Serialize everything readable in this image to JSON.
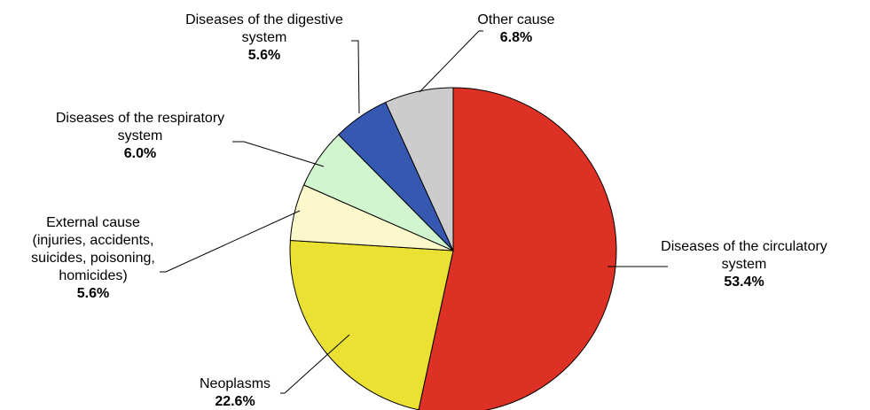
{
  "chart_data": {
    "type": "pie",
    "start": "12 o'clock",
    "direction": "clockwise",
    "slices": [
      {
        "lines": [
          "Diseases of the circulatory",
          "system"
        ],
        "pct_text": "53.4%",
        "value": 53.4,
        "color": "#dd3125"
      },
      {
        "lines": [
          "Neoplasms"
        ],
        "pct_text": "22.6%",
        "value": 22.6,
        "color": "#eae133"
      },
      {
        "lines": [
          "External cause",
          "(injuries, accidents,",
          "suicides, poisoning,",
          "homicides)"
        ],
        "pct_text": "5.6%",
        "value": 5.6,
        "color": "#fbf8cc"
      },
      {
        "lines": [
          "Diseases of the respiratory",
          "system"
        ],
        "pct_text": "6.0%",
        "value": 6.0,
        "color": "#d1f5cf"
      },
      {
        "lines": [
          "Diseases of the digestive",
          "system"
        ],
        "pct_text": "5.6%",
        "value": 5.6,
        "color": "#3658b1"
      },
      {
        "lines": [
          "Other cause"
        ],
        "pct_text": "6.8%",
        "value": 6.8,
        "color": "#cccccc"
      }
    ]
  }
}
